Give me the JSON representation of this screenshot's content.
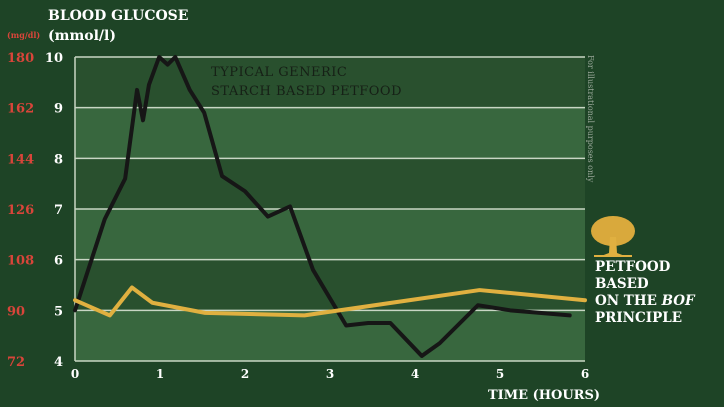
{
  "chart_data": {
    "type": "line",
    "ylabel_line1": "BLOOD GLUCOSE",
    "ylabel_line2": "(mmol/l)",
    "ylabel_secondary": "(mg/dl)",
    "xlabel": "TIME (HOURS)",
    "xlim": [
      0,
      6
    ],
    "ylim": [
      4,
      10
    ],
    "x_ticks": [
      "0",
      "1",
      "2",
      "3",
      "4",
      "5",
      "6"
    ],
    "y_ticks": [
      "4",
      "5",
      "6",
      "7",
      "8",
      "9",
      "10"
    ],
    "y_ticks_secondary": [
      "72",
      "90",
      "108",
      "126",
      "144",
      "162",
      "180"
    ],
    "grid": true,
    "note": "For illustrational purposes only",
    "colors": {
      "background": "#1e4426",
      "starch": "#161616",
      "bof": "#e0b040",
      "secondary_axis": "#d9453a"
    },
    "series": [
      {
        "name": "TYPICAL GENERIC STARCH BASED PETFOOD",
        "label_line1": "TYPICAL GENERIC",
        "label_line2": "STARCH BASED PETFOOD",
        "x": [
          0,
          0.35,
          0.59,
          0.73,
          0.8,
          0.87,
          0.99,
          1.09,
          1.18,
          1.35,
          1.52,
          1.73,
          2.0,
          2.27,
          2.53,
          2.8,
          3.19,
          3.45,
          3.71,
          4.08,
          4.29,
          4.74,
          5.12,
          5.82
        ],
        "y": [
          5.0,
          6.8,
          7.6,
          9.35,
          8.75,
          9.45,
          10.0,
          9.85,
          10.0,
          9.35,
          8.9,
          7.65,
          7.35,
          6.85,
          7.05,
          5.8,
          4.7,
          4.75,
          4.75,
          4.1,
          4.35,
          5.1,
          5.0,
          4.9
        ]
      },
      {
        "name": "PETFOOD BASED ON THE BOF PRINCIPLE",
        "label_line1": "PETFOOD BASED",
        "label_line2a": "ON THE ",
        "label_line2b": "BOF",
        "label_line3": "PRINCIPLE",
        "x": [
          0,
          0.41,
          0.67,
          0.91,
          1.53,
          2.7,
          4.76,
          6.0
        ],
        "y": [
          5.2,
          4.9,
          5.45,
          5.15,
          4.95,
          4.9,
          5.4,
          5.2
        ]
      }
    ]
  }
}
